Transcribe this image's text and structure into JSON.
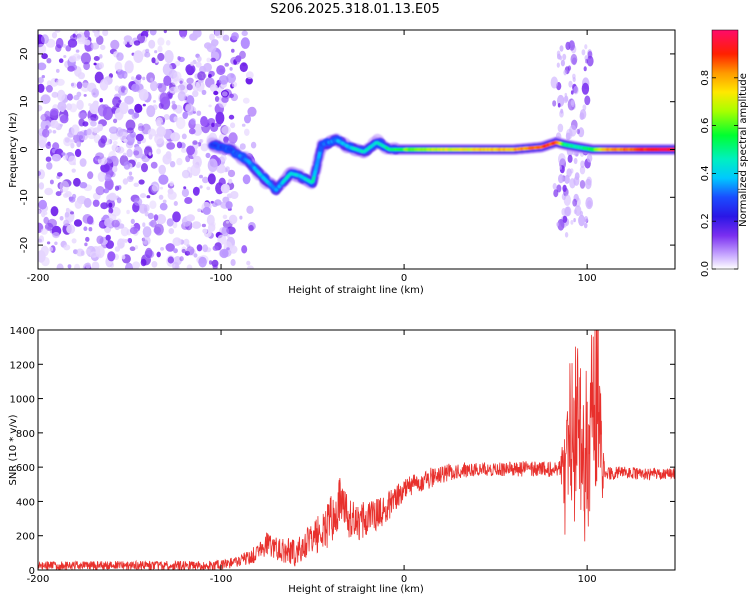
{
  "title": "S206.2025.318.01.13.E05",
  "colors": {
    "snr_line": "#e8302c",
    "axis": "#000000",
    "background": "#ffffff"
  },
  "chart_data": [
    {
      "type": "heatmap",
      "name": "spectrogram",
      "xlabel": "Height of straight line (km)",
      "ylabel": "Frequency (Hz)",
      "xlim": [
        -200,
        148
      ],
      "ylim": [
        -25,
        25
      ],
      "xticks": [
        -200,
        -100,
        0,
        100
      ],
      "xtick_labels": [
        "-200",
        "-100",
        "0",
        "100"
      ],
      "yticks": [
        -20,
        -10,
        0,
        10,
        20
      ],
      "ytick_labels": [
        "-20",
        "-10",
        "0",
        "10",
        "20"
      ],
      "grid": false,
      "colorbar": {
        "label": "Normalized spectral amplitude",
        "range": [
          0,
          1
        ],
        "ticks": [
          0.0,
          0.2,
          0.4,
          0.6,
          0.8
        ],
        "tick_labels": [
          "0.0",
          "0.2",
          "0.4",
          "0.6",
          "0.8"
        ]
      },
      "features": [
        {
          "description": "scattered noise",
          "x_range": [
            -200,
            -92
          ],
          "freq_range": [
            -25,
            25
          ],
          "amplitude": 0.1
        },
        {
          "description": "signal track",
          "points": [
            [
              -105,
              1.0,
              0.25
            ],
            [
              -95,
              0.0,
              0.3
            ],
            [
              -85,
              -2.5,
              0.35
            ],
            [
              -78,
              -5.5,
              0.4
            ],
            [
              -70,
              -8.5,
              0.35
            ],
            [
              -62,
              -5.0,
              0.45
            ],
            [
              -57,
              -5.5,
              0.4
            ],
            [
              -50,
              -7.0,
              0.45
            ],
            [
              -45,
              1.0,
              0.3
            ],
            [
              -37,
              2.0,
              0.35
            ],
            [
              -30,
              0.5,
              0.4
            ],
            [
              -22,
              -0.5,
              0.45
            ],
            [
              -15,
              1.5,
              0.45
            ],
            [
              -8,
              0.0,
              0.5
            ],
            [
              0,
              0.0,
              0.6
            ],
            [
              20,
              0.0,
              0.7
            ],
            [
              40,
              0.0,
              0.75
            ],
            [
              60,
              0.0,
              0.8
            ],
            [
              75,
              0.5,
              0.85
            ],
            [
              83,
              1.5,
              0.9
            ],
            [
              88,
              1.0,
              0.5
            ],
            [
              95,
              0.5,
              0.45
            ],
            [
              103,
              0.0,
              0.55
            ],
            [
              110,
              0.0,
              0.8
            ],
            [
              120,
              0.0,
              0.85
            ],
            [
              130,
              0.0,
              0.9
            ],
            [
              140,
              0.0,
              0.95
            ],
            [
              148,
              0.0,
              0.95
            ]
          ]
        },
        {
          "description": "broadband burst",
          "x_range": [
            82,
            102
          ],
          "freq_range": [
            -18,
            22
          ],
          "amplitude": 0.15
        }
      ]
    },
    {
      "type": "line",
      "name": "snr",
      "xlabel": "Height of straight line (km)",
      "ylabel": "SNR (10 * v/v)",
      "xlim": [
        -200,
        148
      ],
      "ylim": [
        0,
        1400
      ],
      "xticks": [
        -200,
        -100,
        0,
        100
      ],
      "xtick_labels": [
        "-200",
        "-100",
        "0",
        "100"
      ],
      "yticks": [
        0,
        200,
        400,
        600,
        800,
        1000,
        1200,
        1400
      ],
      "ytick_labels": [
        "0",
        "200",
        "400",
        "600",
        "800",
        "1000",
        "1200",
        "1400"
      ],
      "grid": false,
      "series": [
        {
          "name": "SNR",
          "color": "#e8302c",
          "x": [
            -200,
            -150,
            -110,
            -100,
            -90,
            -80,
            -75,
            -70,
            -60,
            -50,
            -40,
            -35,
            -30,
            -25,
            -20,
            -15,
            -10,
            -5,
            0,
            10,
            20,
            30,
            40,
            50,
            60,
            70,
            80,
            85,
            88,
            90,
            92,
            95,
            98,
            100,
            102,
            105,
            108,
            110,
            120,
            130,
            140,
            148
          ],
          "y": [
            25,
            25,
            25,
            30,
            50,
            100,
            160,
            120,
            100,
            180,
            280,
            400,
            300,
            260,
            320,
            320,
            360,
            420,
            460,
            520,
            560,
            580,
            590,
            590,
            590,
            590,
            590,
            600,
            500,
            800,
            700,
            900,
            600,
            700,
            800,
            1000,
            650,
            560,
            570,
            560,
            560,
            565
          ],
          "envelope": {
            "x": [
              -200,
              -90,
              -75,
              -50,
              -40,
              -30,
              -20,
              -10,
              0,
              40,
              85,
              88,
              92,
              98,
              103,
              106,
              110,
              148
            ],
            "amp": [
              25,
              30,
              70,
              90,
              160,
              120,
              110,
              90,
              70,
              40,
              50,
              380,
              520,
              480,
              560,
              500,
              40,
              35
            ]
          },
          "peak": {
            "x": 106,
            "y": 1400
          }
        }
      ]
    }
  ]
}
